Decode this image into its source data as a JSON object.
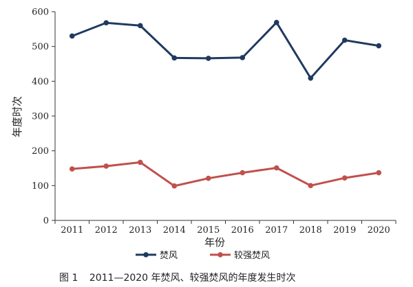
{
  "chart_data": {
    "type": "line",
    "title": "",
    "xlabel": "年份",
    "ylabel": "年度时次",
    "x": [
      "2011",
      "2012",
      "2013",
      "2014",
      "2015",
      "2016",
      "2017",
      "2018",
      "2019",
      "2020"
    ],
    "ylim": [
      0,
      600
    ],
    "yticks": [
      0,
      100,
      200,
      300,
      400,
      500,
      600
    ],
    "grid": false,
    "legend_position": "bottom",
    "series": [
      {
        "name": "焚风",
        "color": "#1f3a5f",
        "values": [
          530,
          568,
          560,
          467,
          466,
          468,
          569,
          409,
          518,
          502
        ]
      },
      {
        "name": "较强焚风",
        "color": "#c0504d",
        "values": [
          148,
          156,
          167,
          99,
          121,
          137,
          151,
          100,
          122,
          137
        ]
      }
    ]
  },
  "caption": {
    "label": "图 1",
    "text": "2011—2020 年焚风、较强焚风的年度发生时次"
  }
}
